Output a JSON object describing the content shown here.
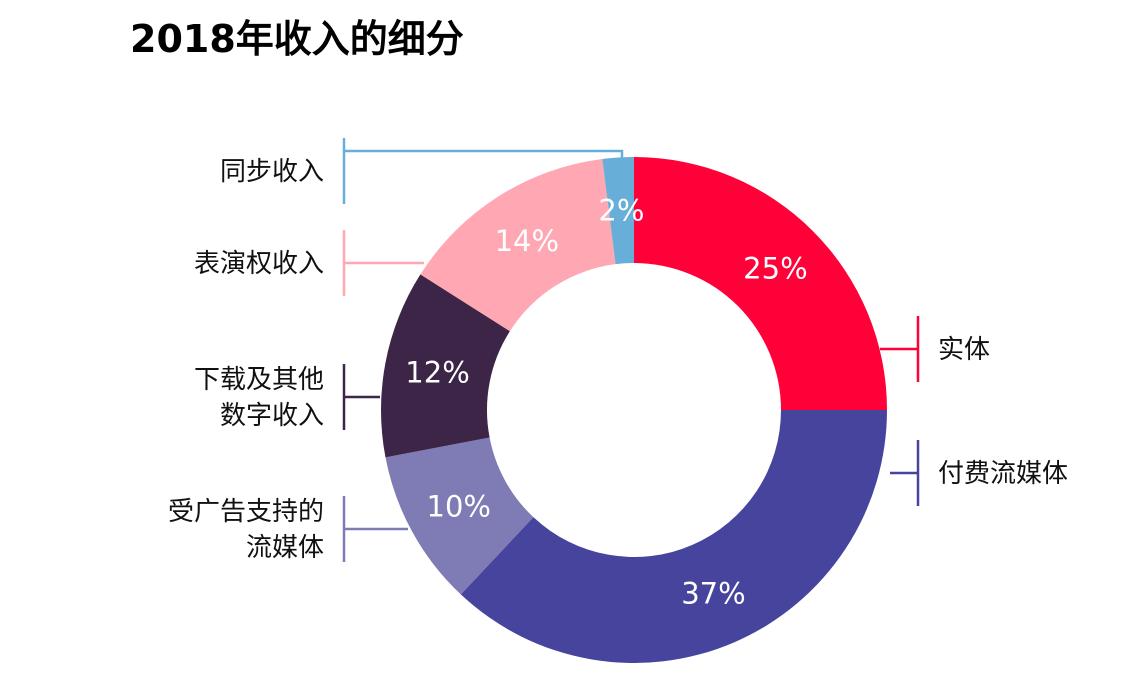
{
  "title": "2018年收入的细分",
  "chart_data": {
    "type": "pie",
    "donut": true,
    "title": "2018年收入的细分",
    "unit": "%",
    "slices": [
      {
        "name": "实体",
        "value": 25,
        "label": "25%",
        "color": "#FF0038"
      },
      {
        "name": "付费流媒体",
        "value": 37,
        "label": "37%",
        "color": "#47449E"
      },
      {
        "name": "受广告支持的流媒体",
        "value": 10,
        "label": "10%",
        "color": "#7F7BB5"
      },
      {
        "name": "下载及其他数字收入",
        "value": 12,
        "label": "12%",
        "color": "#3D2548"
      },
      {
        "name": "表演权收入",
        "value": 14,
        "label": "14%",
        "color": "#FFA8B4"
      },
      {
        "name": "同步收入",
        "value": 2,
        "label": "2%",
        "color": "#67AFD9"
      }
    ],
    "legend_labels": {
      "实体": [
        "实体"
      ],
      "付费流媒体": [
        "付费流媒体"
      ],
      "受广告支持的流媒体": [
        "受广告支持的",
        "流媒体"
      ],
      "下载及其他数字收入": [
        "下载及其他",
        "数字收入"
      ],
      "表演权收入": [
        "表演权收入"
      ],
      "同步收入": [
        "同步收入"
      ]
    }
  }
}
